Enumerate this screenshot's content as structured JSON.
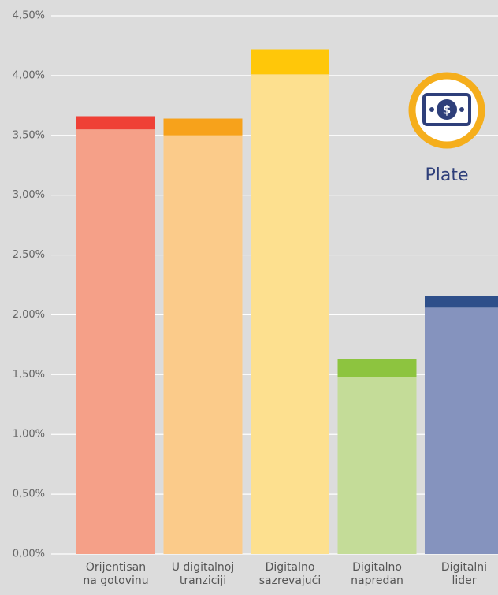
{
  "chart_data": {
    "type": "stacked_bar",
    "categories": [
      [
        "Orijentisan",
        "na gotovinu"
      ],
      [
        "U digitalnoj",
        "tranziciji"
      ],
      [
        "Digitalno",
        "sazrevajući"
      ],
      [
        "Digitalno",
        "napredan"
      ],
      [
        "Digitalni",
        "lider"
      ]
    ],
    "series": [
      {
        "values": [
          3.55,
          3.5,
          4.01,
          1.48,
          2.06
        ],
        "colors": [
          "#f5a088",
          "#fbcb8a",
          "#fde08f",
          "#c4dc98",
          "#8593be"
        ]
      },
      {
        "values": [
          0.11,
          0.14,
          0.21,
          0.15,
          0.1
        ],
        "colors": [
          "#ef4036",
          "#f7a21b",
          "#ffc709",
          "#8dc43f",
          "#2e4f8a"
        ]
      }
    ],
    "ylim": [
      0,
      4.5
    ],
    "yticks": [
      {
        "value": 0,
        "label": "0,00%"
      },
      {
        "value": 0.5,
        "label": "0,50%"
      },
      {
        "value": 1,
        "label": "1,00%"
      },
      {
        "value": 1.5,
        "label": "1,50%"
      },
      {
        "value": 2,
        "label": "2,00%"
      },
      {
        "value": 2.5,
        "label": "2,50%"
      },
      {
        "value": 3,
        "label": "3,00%"
      },
      {
        "value": 3.5,
        "label": "3,50%"
      },
      {
        "value": 4,
        "label": "4,00%"
      },
      {
        "value": 4.5,
        "label": "4,50%"
      }
    ],
    "grid": true,
    "annotation": {
      "text": "Plate",
      "icon_symbol": "$"
    }
  }
}
